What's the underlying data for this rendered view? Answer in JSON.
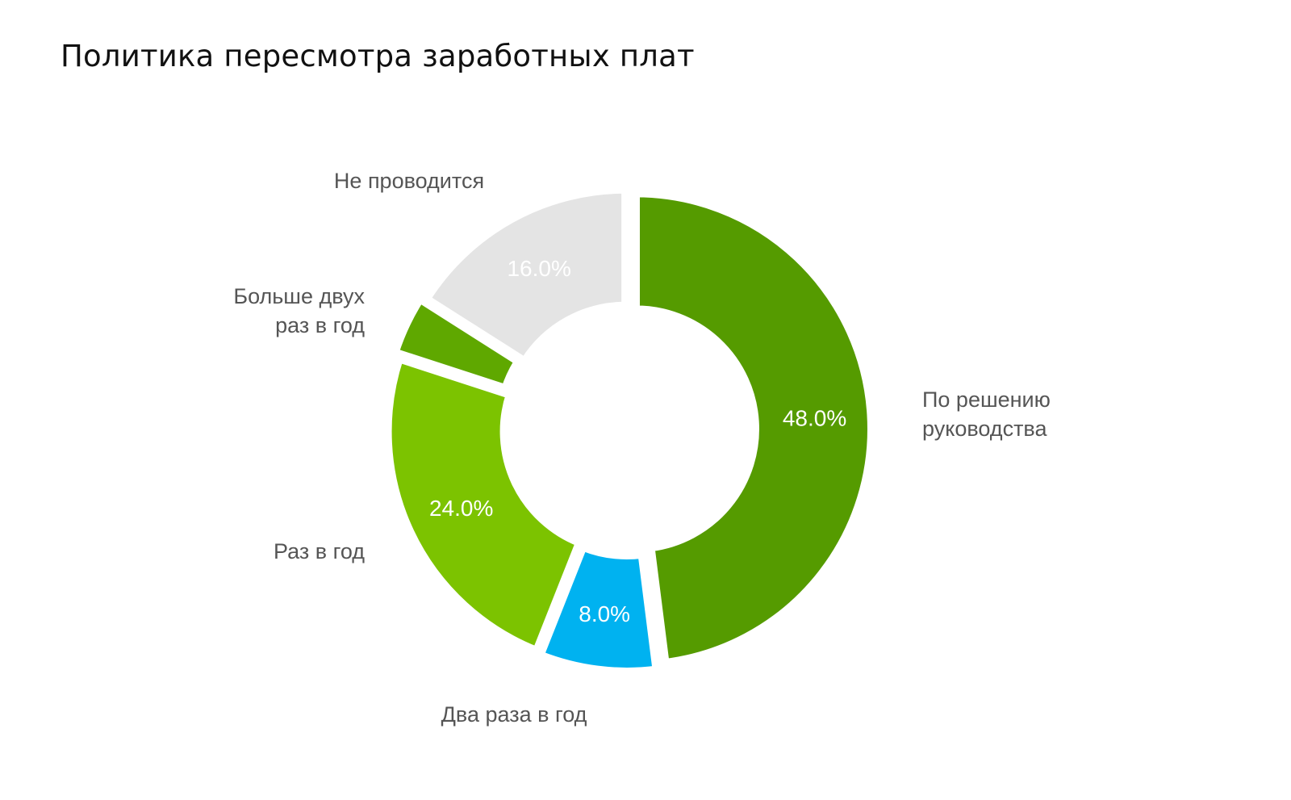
{
  "chart_data": {
    "type": "pie",
    "title": "Политика пересмотра заработных плат",
    "donut": true,
    "categories": [
      "По решению руководства",
      "Два раза в год",
      "Раз в год",
      "Больше двух раз в год",
      "Не проводится"
    ],
    "category_lines": [
      [
        "По решению",
        "руководства"
      ],
      [
        "Два раза в год"
      ],
      [
        "Раз в год"
      ],
      [
        "Больше двух",
        "раз в год"
      ],
      [
        "Не проводится"
      ]
    ],
    "values": [
      48.0,
      8.0,
      24.0,
      4.0,
      16.0
    ],
    "value_labels": [
      "48.0%",
      "8.0%",
      "24.0%",
      "",
      "16.0%"
    ],
    "colors": [
      "#559B00",
      "#00B2F0",
      "#7CC300",
      "#5FA800",
      "#E4E4E4"
    ],
    "legend": "none"
  }
}
